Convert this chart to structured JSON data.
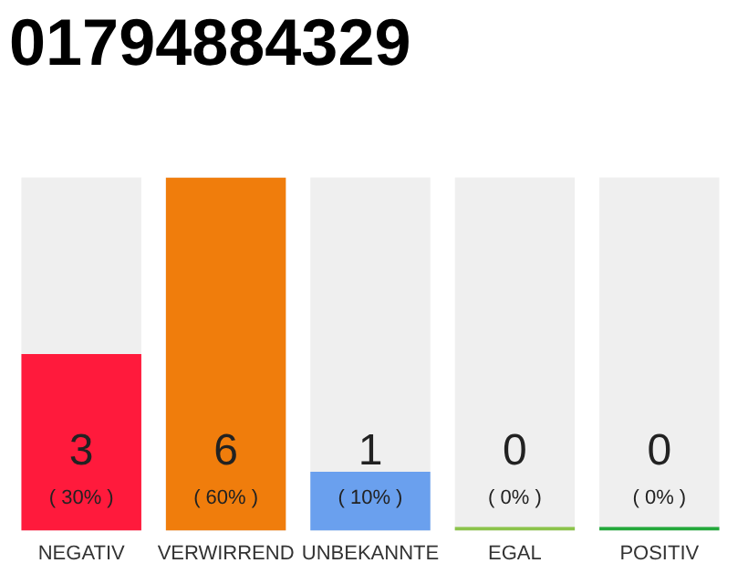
{
  "chart_data": {
    "type": "bar",
    "title": "01794884329",
    "categories": [
      "NEGATIV",
      "VERWIRREND",
      "UNBEKANNTE",
      "EGAL",
      "POSITIV"
    ],
    "values": [
      3,
      6,
      1,
      0,
      0
    ],
    "colors": [
      "#ff1a3c",
      "#f07d0c",
      "#6aa0ee",
      "#8bc34a",
      "#22a83a"
    ],
    "value_labels": [
      "3\n( 30% )",
      "6\n( 60% )",
      "1\n( 10% )",
      "0\n( 0% )",
      "0\n( 0% )"
    ],
    "ylim": [
      0,
      6
    ],
    "tick_labels": "x",
    "grid": false,
    "legend": false
  }
}
